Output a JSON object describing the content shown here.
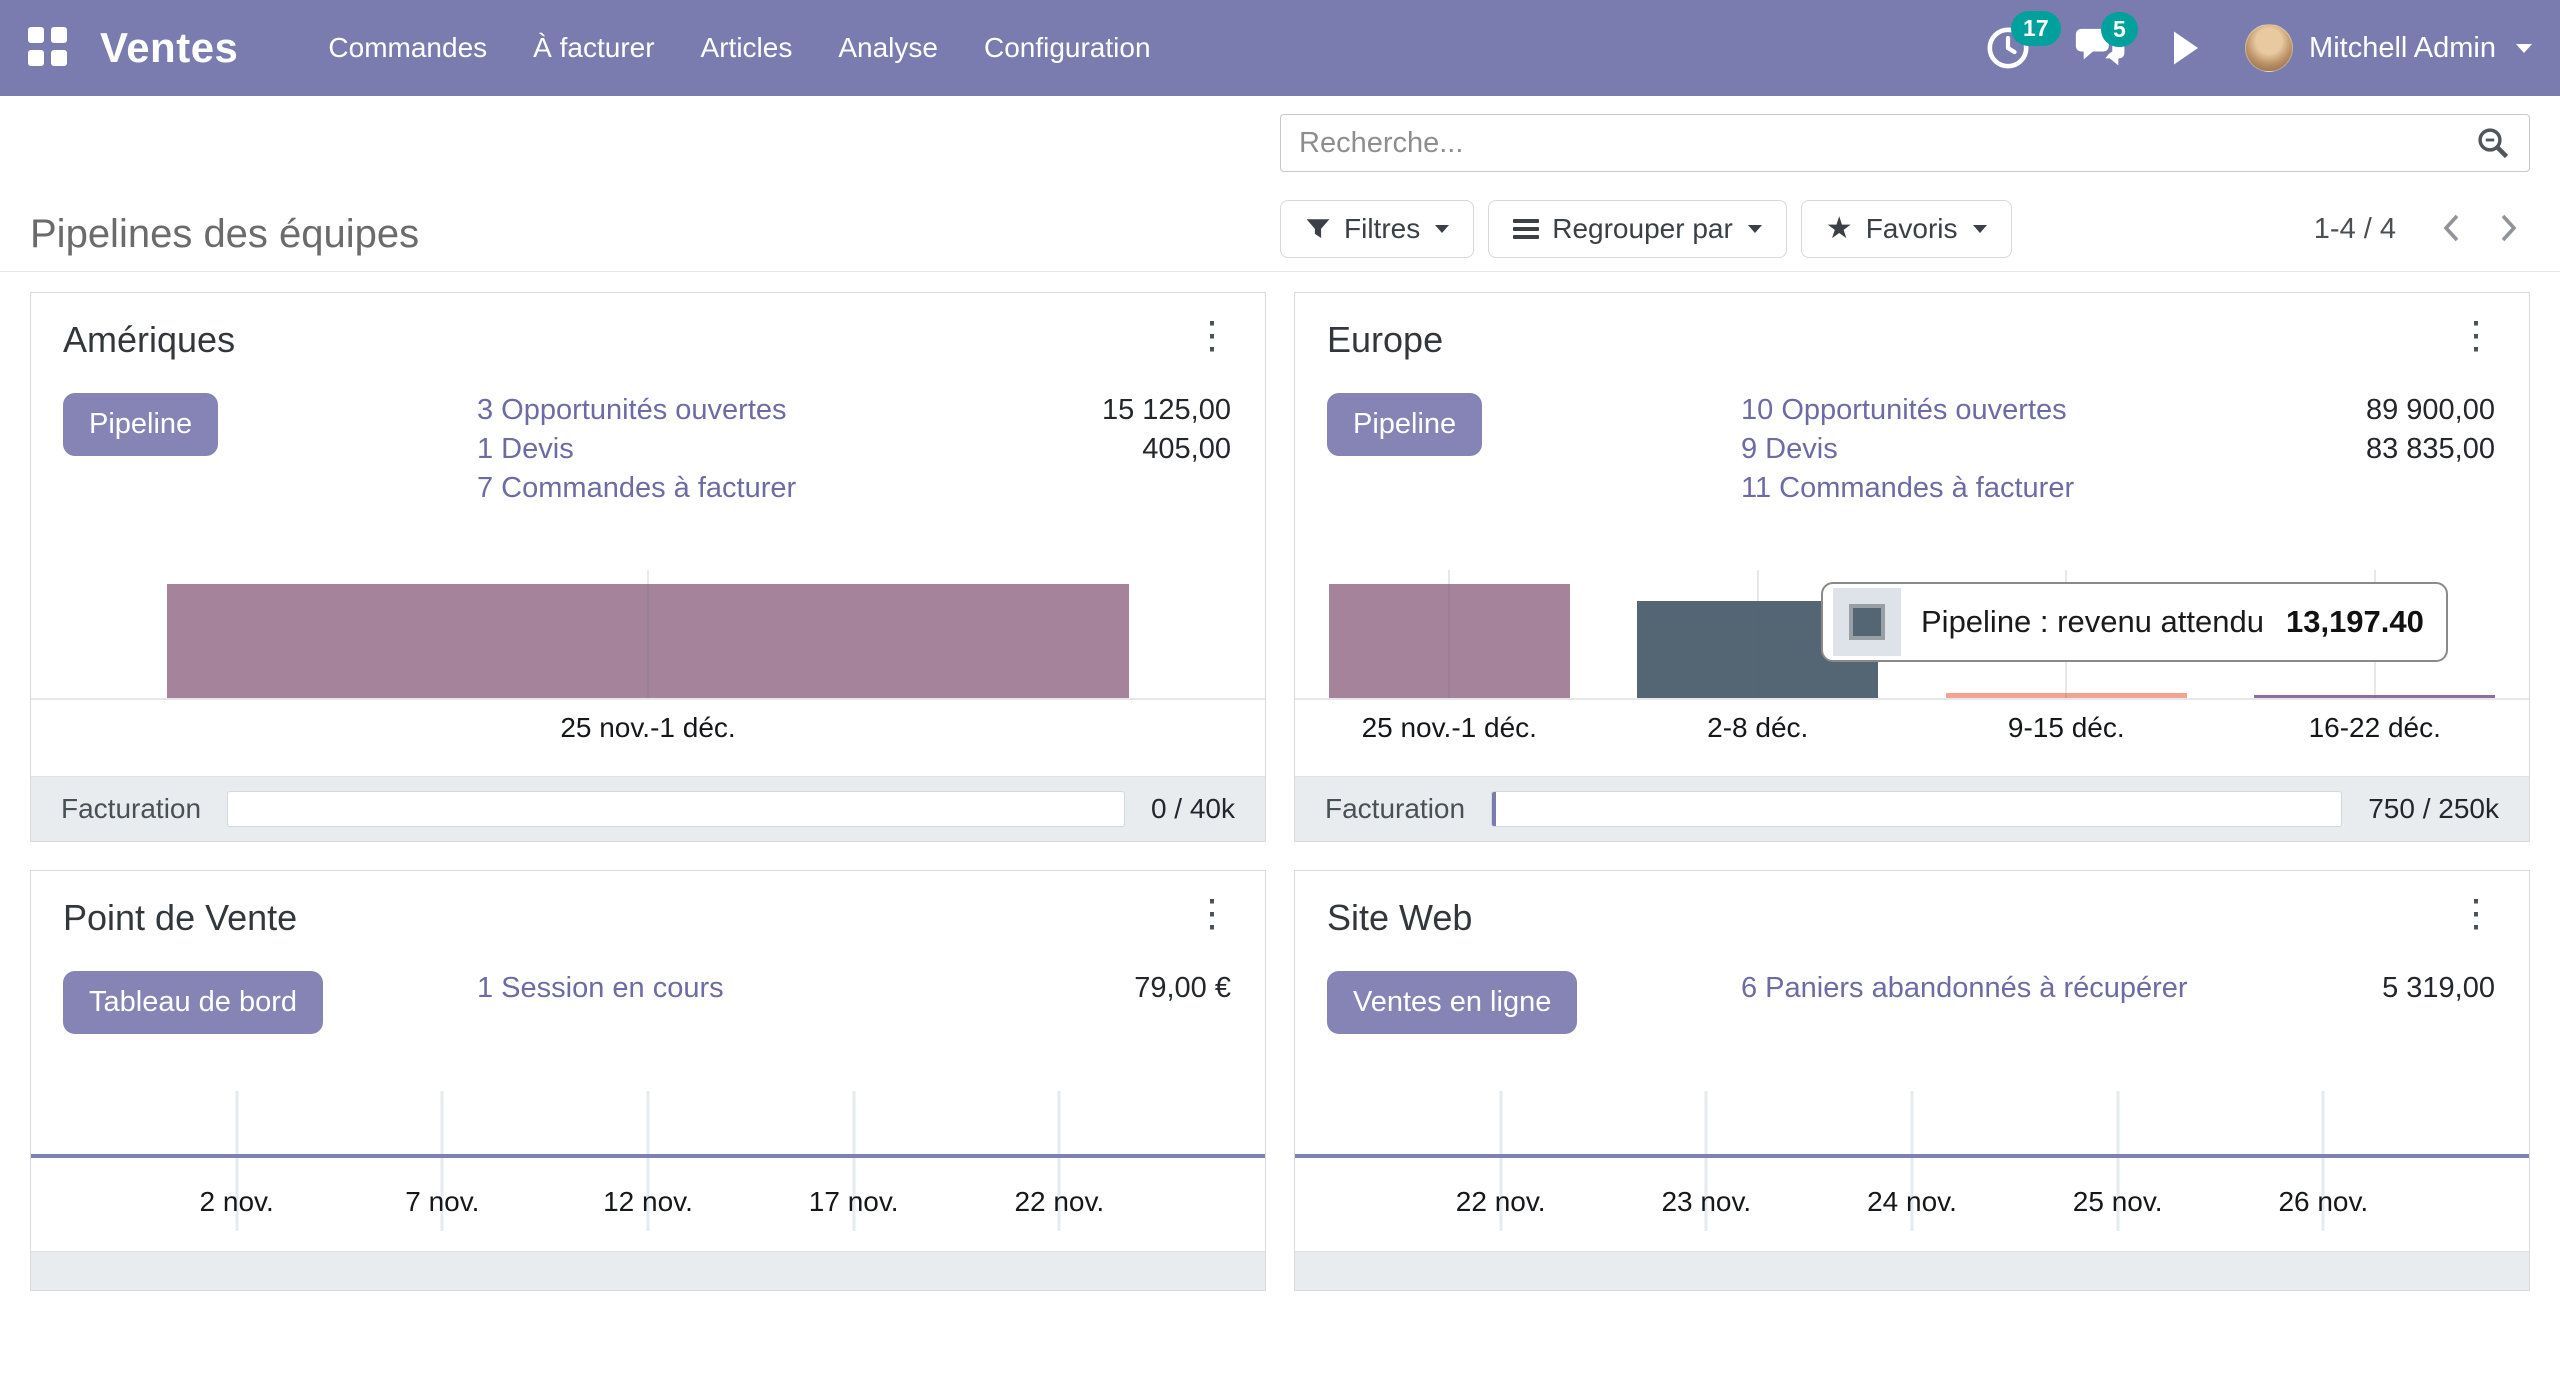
{
  "nav": {
    "brand": "Ventes",
    "items": [
      "Commandes",
      "À facturer",
      "Articles",
      "Analyse",
      "Configuration"
    ],
    "activity_count": "17",
    "message_count": "5",
    "user": "Mitchell Admin"
  },
  "control": {
    "title": "Pipelines des équipes",
    "search_placeholder": "Recherche...",
    "filters_label": "Filtres",
    "group_by_label": "Regrouper par",
    "favorites_label": "Favoris",
    "pager": "1-4 / 4"
  },
  "cards": [
    {
      "title": "Amériques",
      "button": "Pipeline",
      "stats": [
        {
          "label": "3 Opportunités ouvertes",
          "value": "15 125,00"
        },
        {
          "label": "1 Devis",
          "value": "405,00"
        },
        {
          "label": "7 Commandes à facturer",
          "value": ""
        }
      ],
      "footer": {
        "label": "Facturation",
        "value": "0 / 40k",
        "progress_pct": 0
      }
    },
    {
      "title": "Europe",
      "button": "Pipeline",
      "stats": [
        {
          "label": "10 Opportunités ouvertes",
          "value": "89 900,00"
        },
        {
          "label": "9 Devis",
          "value": "83 835,00"
        },
        {
          "label": "11 Commandes à facturer",
          "value": ""
        }
      ],
      "tooltip": {
        "label": "Pipeline : revenu attendu",
        "value": "13,197.40"
      },
      "footer": {
        "label": "Facturation",
        "value": "750 / 250k",
        "progress_pct": 0.3
      }
    },
    {
      "title": "Point de Vente",
      "button": "Tableau de bord",
      "stats": [
        {
          "label": "1 Session en cours",
          "value": "79,00 €"
        }
      ]
    },
    {
      "title": "Site Web",
      "button": "Ventes en ligne",
      "stats": [
        {
          "label": "6 Paniers abandonnés à récupérer",
          "value": "5 319,00"
        }
      ]
    }
  ],
  "chart_data": [
    {
      "type": "bar",
      "title": "Amériques - Pipeline : revenu attendu par semaine",
      "categories": [
        "25 nov.-1 déc."
      ],
      "values": [
        15125
      ],
      "ylim": [
        0,
        17000
      ],
      "bar_colors": [
        "#A5849B"
      ],
      "grid": true,
      "legend_position": "none"
    },
    {
      "type": "bar",
      "title": "Europe - Pipeline : revenu attendu par semaine",
      "categories": [
        "25 nov.-1 déc.",
        "2-8 déc.",
        "9-15 déc.",
        "16-22 déc."
      ],
      "values": [
        15600,
        13197.4,
        700,
        420
      ],
      "hovered_value": 13197.4,
      "hovered_category": "2-8 déc.",
      "ylim": [
        0,
        17500
      ],
      "bar_colors": [
        "#A5849B",
        "#546673",
        "#F2A491",
        "#8F6D9F"
      ],
      "grid": true,
      "legend_position": "none"
    },
    {
      "type": "line",
      "title": "Point de Vente - ventes par jour",
      "categories": [
        "2 nov.",
        "7 nov.",
        "12 nov.",
        "17 nov.",
        "22 nov."
      ],
      "values": [
        0,
        0,
        0,
        0,
        0
      ],
      "ylim": [
        -1,
        1
      ],
      "line_color": "#8081B3",
      "grid": true,
      "legend_position": "none"
    },
    {
      "type": "line",
      "title": "Site Web - ventes par jour",
      "categories": [
        "22 nov.",
        "23 nov.",
        "24 nov.",
        "25 nov.",
        "26 nov."
      ],
      "values": [
        0,
        0,
        0,
        0,
        0
      ],
      "ylim": [
        -1,
        1
      ],
      "line_color": "#8081B3",
      "grid": true,
      "legend_position": "none"
    }
  ],
  "icons": {
    "apps": "grid-2x2",
    "activities": "clock",
    "messages": "chat-bubbles",
    "play": "play-triangle",
    "user_menu": "caret-down",
    "search": "magnifier",
    "filters": "funnel",
    "group_by": "horizontal-bars",
    "favorites": "star",
    "card_menu": "vertical-dots",
    "pager_prev": "chevron-left",
    "pager_next": "chevron-right"
  },
  "colors": {
    "navbar": "#7A7CB0",
    "badge": "#00A09D",
    "primary_button": "#8683B5",
    "link": "#6D6BA4",
    "bar_mauve": "#A5849B",
    "bar_slate": "#546673",
    "bar_salmon": "#F2A491",
    "bar_purple": "#8F6D9F",
    "line": "#8081B3",
    "footer_bg": "#E9ECEF"
  }
}
